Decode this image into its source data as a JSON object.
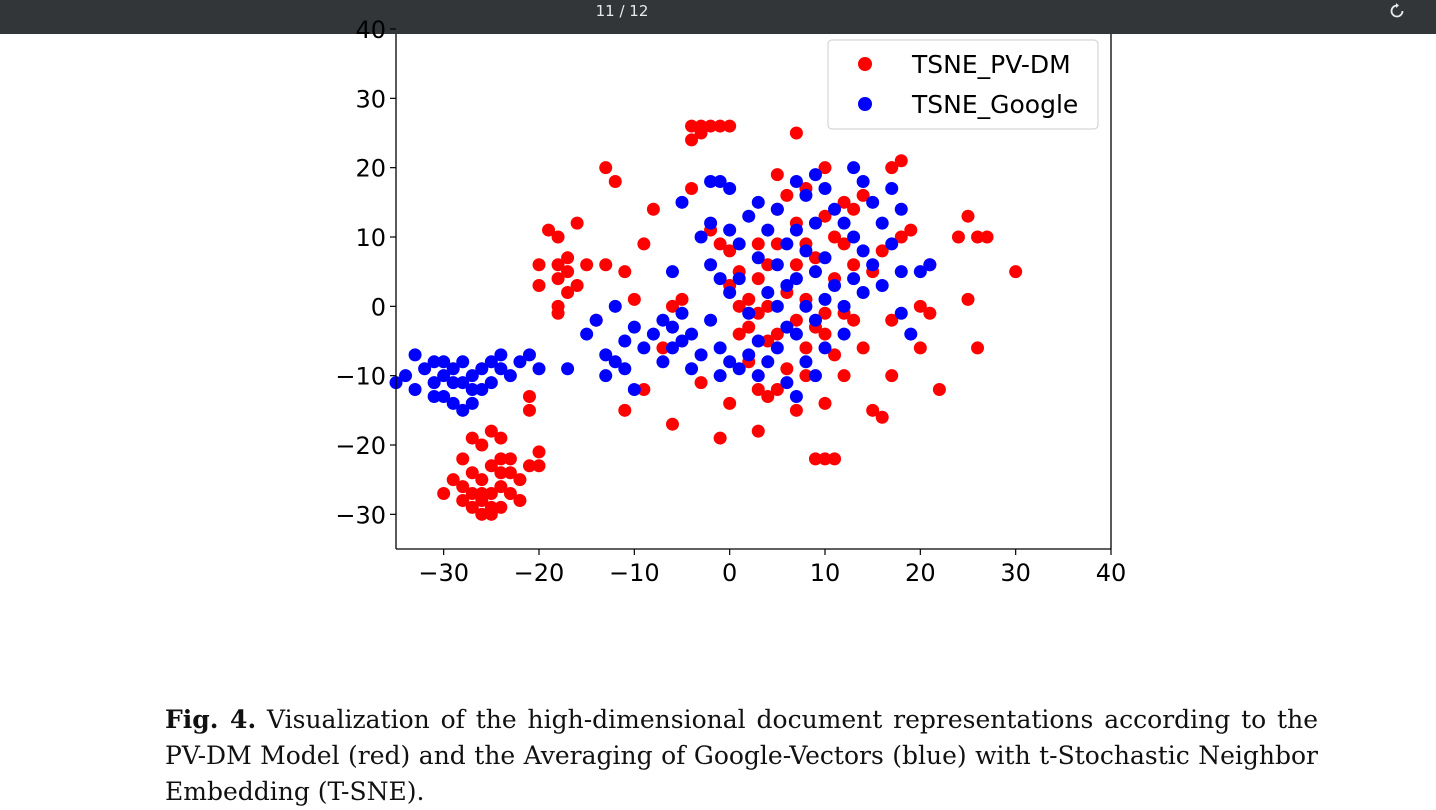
{
  "viewer": {
    "page_counter": "11 / 12",
    "rotate_icon": "rotate-icon"
  },
  "caption": {
    "label": "Fig. 4.",
    "text": " Visualization of the high-dimensional document representations according to the PV-DM Model (red) and the Averaging of Google-Vectors (blue) with t-Stochastic Neighbor Embedding (T-SNE)."
  },
  "chart_data": {
    "type": "scatter",
    "title": "",
    "xlabel": "",
    "ylabel": "",
    "xlim": [
      -35,
      40
    ],
    "ylim": [
      -35,
      40
    ],
    "xticks": [
      "−30",
      "−20",
      "−10",
      "0",
      "10",
      "20",
      "30",
      "40"
    ],
    "xtick_values": [
      -30,
      -20,
      -10,
      0,
      10,
      20,
      30,
      40
    ],
    "yticks": [
      "40",
      "30",
      "20",
      "10",
      "0",
      "−10",
      "−20",
      "−30"
    ],
    "ytick_values": [
      40,
      30,
      20,
      10,
      0,
      -10,
      -20,
      -30
    ],
    "grid": false,
    "legend_position": "top-right",
    "series": [
      {
        "name": "TSNE_PV-DM",
        "color": "#ff0000",
        "points": [
          [
            -27,
            -19
          ],
          [
            -26,
            -20
          ],
          [
            -25,
            -18
          ],
          [
            -24,
            -19
          ],
          [
            -28,
            -22
          ],
          [
            -27,
            -24
          ],
          [
            -26,
            -25
          ],
          [
            -25,
            -23
          ],
          [
            -24,
            -22
          ],
          [
            -23,
            -24
          ],
          [
            -22,
            -25
          ],
          [
            -21,
            -23
          ],
          [
            -29,
            -25
          ],
          [
            -28,
            -26
          ],
          [
            -27,
            -27
          ],
          [
            -26,
            -28
          ],
          [
            -25,
            -27
          ],
          [
            -24,
            -26
          ],
          [
            -23,
            -27
          ],
          [
            -27,
            -29
          ],
          [
            -26,
            -30
          ],
          [
            -25,
            -29
          ],
          [
            -24,
            -29
          ],
          [
            -28,
            -28
          ],
          [
            -30,
            -27
          ],
          [
            -20,
            -21
          ],
          [
            -20,
            -23
          ],
          [
            -22,
            -28
          ],
          [
            -25,
            -30
          ],
          [
            -26,
            -27
          ],
          [
            -24,
            -24
          ],
          [
            -23,
            -22
          ],
          [
            -21,
            -13
          ],
          [
            -21,
            -15
          ],
          [
            -20,
            3
          ],
          [
            -20,
            6
          ],
          [
            -19,
            11
          ],
          [
            -18,
            10
          ],
          [
            -18,
            6
          ],
          [
            -18,
            4
          ],
          [
            -17,
            7
          ],
          [
            -17,
            5
          ],
          [
            -16,
            12
          ],
          [
            -15,
            6
          ],
          [
            -16,
            3
          ],
          [
            -18,
            0
          ],
          [
            -18,
            -1
          ],
          [
            -17,
            2
          ],
          [
            -14,
            -2
          ],
          [
            -13,
            6
          ],
          [
            -13,
            20
          ],
          [
            -12,
            18
          ],
          [
            -11,
            5
          ],
          [
            -10,
            1
          ],
          [
            -11,
            -15
          ],
          [
            -9,
            -12
          ],
          [
            -9,
            9
          ],
          [
            -8,
            14
          ],
          [
            -7,
            -6
          ],
          [
            -6,
            0
          ],
          [
            -6,
            -17
          ],
          [
            -5,
            1
          ],
          [
            -4,
            26
          ],
          [
            -4,
            24
          ],
          [
            -3,
            26
          ],
          [
            -3,
            25
          ],
          [
            -2,
            26
          ],
          [
            -1,
            26
          ],
          [
            0,
            26
          ],
          [
            -4,
            17
          ],
          [
            -3,
            -11
          ],
          [
            -2,
            11
          ],
          [
            -1,
            9
          ],
          [
            -1,
            -19
          ],
          [
            0,
            8
          ],
          [
            0,
            3
          ],
          [
            0,
            -14
          ],
          [
            1,
            5
          ],
          [
            1,
            0
          ],
          [
            1,
            -4
          ],
          [
            2,
            1
          ],
          [
            2,
            -3
          ],
          [
            2,
            -8
          ],
          [
            3,
            9
          ],
          [
            3,
            4
          ],
          [
            3,
            -1
          ],
          [
            3,
            -12
          ],
          [
            3,
            -18
          ],
          [
            4,
            6
          ],
          [
            4,
            0
          ],
          [
            4,
            -5
          ],
          [
            5,
            19
          ],
          [
            5,
            14
          ],
          [
            5,
            9
          ],
          [
            5,
            -4
          ],
          [
            5,
            -12
          ],
          [
            6,
            16
          ],
          [
            6,
            2
          ],
          [
            6,
            -9
          ],
          [
            7,
            25
          ],
          [
            7,
            12
          ],
          [
            7,
            6
          ],
          [
            7,
            -2
          ],
          [
            7,
            -15
          ],
          [
            8,
            17
          ],
          [
            8,
            9
          ],
          [
            8,
            1
          ],
          [
            8,
            -6
          ],
          [
            8,
            -10
          ],
          [
            9,
            7
          ],
          [
            9,
            -3
          ],
          [
            9,
            -22
          ],
          [
            10,
            20
          ],
          [
            10,
            13
          ],
          [
            10,
            -1
          ],
          [
            10,
            -4
          ],
          [
            10,
            -14
          ],
          [
            10,
            -22
          ],
          [
            11,
            10
          ],
          [
            11,
            4
          ],
          [
            11,
            -7
          ],
          [
            12,
            15
          ],
          [
            12,
            9
          ],
          [
            12,
            -1
          ],
          [
            12,
            -10
          ],
          [
            13,
            14
          ],
          [
            13,
            6
          ],
          [
            13,
            -2
          ],
          [
            14,
            16
          ],
          [
            14,
            -6
          ],
          [
            15,
            -15
          ],
          [
            15,
            5
          ],
          [
            16,
            -16
          ],
          [
            16,
            8
          ],
          [
            17,
            -10
          ],
          [
            17,
            20
          ],
          [
            17,
            -2
          ],
          [
            18,
            21
          ],
          [
            18,
            10
          ],
          [
            19,
            11
          ],
          [
            20,
            -6
          ],
          [
            20,
            0
          ],
          [
            21,
            6
          ],
          [
            21,
            -1
          ],
          [
            22,
            -12
          ],
          [
            24,
            10
          ],
          [
            25,
            13
          ],
          [
            25,
            1
          ],
          [
            26,
            -6
          ],
          [
            26,
            10
          ],
          [
            27,
            10
          ],
          [
            30,
            5
          ],
          [
            11,
            -22
          ],
          [
            4,
            -13
          ]
        ]
      },
      {
        "name": "TSNE_Google",
        "color": "#0000ff",
        "points": [
          [
            -35,
            -11
          ],
          [
            -34,
            -10
          ],
          [
            -33,
            -12
          ],
          [
            -33,
            -7
          ],
          [
            -32,
            -9
          ],
          [
            -31,
            -11
          ],
          [
            -31,
            -8
          ],
          [
            -30,
            -13
          ],
          [
            -30,
            -10
          ],
          [
            -29,
            -9
          ],
          [
            -29,
            -14
          ],
          [
            -28,
            -11
          ],
          [
            -28,
            -8
          ],
          [
            -27,
            -10
          ],
          [
            -27,
            -14
          ],
          [
            -26,
            -9
          ],
          [
            -26,
            -12
          ],
          [
            -25,
            -8
          ],
          [
            -25,
            -11
          ],
          [
            -24,
            -9
          ],
          [
            -24,
            -7
          ],
          [
            -23,
            -10
          ],
          [
            -22,
            -8
          ],
          [
            -21,
            -7
          ],
          [
            -20,
            -9
          ],
          [
            -17,
            -9
          ],
          [
            -29,
            -11
          ],
          [
            -30,
            -8
          ],
          [
            -27,
            -12
          ],
          [
            -31,
            -13
          ],
          [
            -28,
            -15
          ],
          [
            -15,
            -4
          ],
          [
            -14,
            -2
          ],
          [
            -13,
            -7
          ],
          [
            -13,
            -10
          ],
          [
            -12,
            -8
          ],
          [
            -12,
            0
          ],
          [
            -11,
            -5
          ],
          [
            -11,
            -9
          ],
          [
            -10,
            -12
          ],
          [
            -10,
            -3
          ],
          [
            -9,
            -6
          ],
          [
            -8,
            -4
          ],
          [
            -7,
            -2
          ],
          [
            -7,
            -8
          ],
          [
            -6,
            -3
          ],
          [
            -6,
            -6
          ],
          [
            -6,
            5
          ],
          [
            -5,
            -5
          ],
          [
            -5,
            -1
          ],
          [
            -5,
            15
          ],
          [
            -4,
            -4
          ],
          [
            -4,
            -9
          ],
          [
            -3,
            10
          ],
          [
            -3,
            -7
          ],
          [
            -2,
            12
          ],
          [
            -2,
            18
          ],
          [
            -2,
            6
          ],
          [
            -2,
            -2
          ],
          [
            -1,
            18
          ],
          [
            -1,
            4
          ],
          [
            -1,
            -6
          ],
          [
            -1,
            -10
          ],
          [
            0,
            17
          ],
          [
            0,
            11
          ],
          [
            0,
            2
          ],
          [
            0,
            -8
          ],
          [
            1,
            9
          ],
          [
            1,
            4
          ],
          [
            1,
            -9
          ],
          [
            2,
            13
          ],
          [
            2,
            -1
          ],
          [
            2,
            -7
          ],
          [
            3,
            15
          ],
          [
            3,
            7
          ],
          [
            3,
            -5
          ],
          [
            3,
            -10
          ],
          [
            4,
            11
          ],
          [
            4,
            2
          ],
          [
            4,
            -8
          ],
          [
            5,
            14
          ],
          [
            5,
            6
          ],
          [
            5,
            0
          ],
          [
            5,
            -6
          ],
          [
            6,
            9
          ],
          [
            6,
            3
          ],
          [
            6,
            -3
          ],
          [
            6,
            -11
          ],
          [
            7,
            18
          ],
          [
            7,
            11
          ],
          [
            7,
            4
          ],
          [
            7,
            -4
          ],
          [
            7,
            -13
          ],
          [
            8,
            16
          ],
          [
            8,
            8
          ],
          [
            8,
            0
          ],
          [
            8,
            -8
          ],
          [
            9,
            19
          ],
          [
            9,
            12
          ],
          [
            9,
            5
          ],
          [
            9,
            -2
          ],
          [
            9,
            -10
          ],
          [
            10,
            17
          ],
          [
            10,
            7
          ],
          [
            10,
            1
          ],
          [
            10,
            -6
          ],
          [
            11,
            14
          ],
          [
            11,
            3
          ],
          [
            12,
            12
          ],
          [
            12,
            0
          ],
          [
            12,
            -4
          ],
          [
            13,
            20
          ],
          [
            13,
            10
          ],
          [
            13,
            4
          ],
          [
            14,
            18
          ],
          [
            14,
            8
          ],
          [
            14,
            2
          ],
          [
            15,
            15
          ],
          [
            15,
            6
          ],
          [
            16,
            12
          ],
          [
            16,
            3
          ],
          [
            17,
            17
          ],
          [
            17,
            9
          ],
          [
            18,
            14
          ],
          [
            18,
            5
          ],
          [
            18,
            -1
          ],
          [
            19,
            -4
          ],
          [
            20,
            5
          ],
          [
            21,
            6
          ]
        ]
      }
    ]
  }
}
